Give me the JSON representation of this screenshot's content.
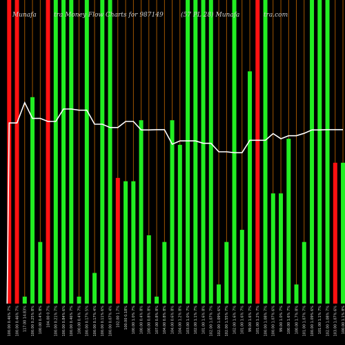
{
  "chart_data": {
    "type": "bar",
    "title_left": "Munafa",
    "title_main": "tra  Money Flow  Charts for 987149",
    "title_right": "(57 PL 28)  Munafa",
    "title_right_tail": "tra.com",
    "xlabel": "",
    "ylabel": "",
    "ylim": [
      0,
      100
    ],
    "grid": false,
    "bar_colors": {
      "green": "#22ee22",
      "red": "#ff1111"
    },
    "line_color": "#ffffff",
    "gridline_color": "#c86a00",
    "categories": [
      "100.00 0.46% 7%",
      "100.00 0.46% 7%",
      "117.00 14.83%",
      "100.00 0.25% 8%",
      "100.00 0.4% 8%",
      "104.00 0.7%",
      "100.00 0.21% 7%",
      "100.00 0.84% 6%",
      "100.00 0.46% 7%",
      "100.00 0.4% 7%",
      "100.00 0.17% 5%",
      "100.00 0.17% 4%",
      "100.00 0.11% 6%",
      "100.00 0.07% 4%",
      "102.00 1.7%",
      "100.00 0.18%",
      "100.00 1.0% 7%",
      "100.00 0.4% 8%",
      "100.00 0.8% 8%",
      "107.00 0.8% 8%",
      "104.00 0.8% 8%",
      "104.00 0.6% 8%",
      "104.00 1.2% 8%",
      "103.00 1.0% 7%",
      "102.00 1.1% 7%",
      "101.00 1.6% 8%",
      "102.00 1.07% 7%",
      "102.00 1.09% 6%",
      "102.00 1.55% 7%",
      "102.00 1.6% 7%",
      "101.00 1.6% 7%",
      "99.00 1.6% 7%",
      "101.00 1.2% 7%",
      "100.00 1.08% 7%",
      "100.00 1.07% 6%",
      "99.00 1.0% 7%",
      "100.00 1.6% 7%",
      "100.00 1.7% 8%",
      "101.00 1.07% 7%",
      "100.00 1.09% 6%",
      "101.00 1.1% 7%",
      "102.00 1.08% 7%",
      "103.00 1.07% 6%",
      "100.00 1.1% 8%"
    ],
    "bar_color_sequence": [
      "red",
      "red",
      "green",
      "green",
      "green",
      "red",
      "green",
      "green",
      "green",
      "green",
      "green",
      "green",
      "green",
      "green",
      "red",
      "green",
      "green",
      "green",
      "green",
      "green",
      "green",
      "green",
      "green",
      "green",
      "green",
      "green",
      "green",
      "green",
      "green",
      "green",
      "green",
      "green",
      "red",
      "green",
      "green",
      "green",
      "green",
      "green",
      "green",
      "green",
      "green",
      "green",
      "red",
      "green"
    ],
    "values": [
      100,
      100,
      2.3,
      68,
      20.3,
      100,
      100,
      100,
      100,
      2.3,
      100,
      10.1,
      100,
      100,
      41.4,
      40.3,
      40.3,
      60.4,
      22.5,
      2.3,
      20.3,
      60.4,
      52.3,
      100,
      100,
      100,
      100,
      6.3,
      20.3,
      100,
      24.3,
      76.5,
      100,
      100,
      36.3,
      36.3,
      54.3,
      6.3,
      20.3,
      100,
      100,
      100,
      46.4,
      46.4
    ],
    "series": [
      {
        "values": [
          59.5,
          59.5,
          66.2,
          61.0,
          61.0,
          60.0,
          60.0,
          64.1,
          64.1,
          63.7,
          63.7,
          59.1,
          59.1,
          58.0,
          58.0,
          60.0,
          60.0,
          57.2,
          57.2,
          57.3,
          57.3,
          52.5,
          53.6,
          53.6,
          53.6,
          52.8,
          52.8,
          50.0,
          50.0,
          49.7,
          49.7,
          53.8,
          53.8,
          53.8,
          56.0,
          54.3,
          55.3,
          55.3,
          56.1,
          57.2,
          57.2,
          57.3,
          57.3,
          57.3
        ]
      }
    ]
  }
}
